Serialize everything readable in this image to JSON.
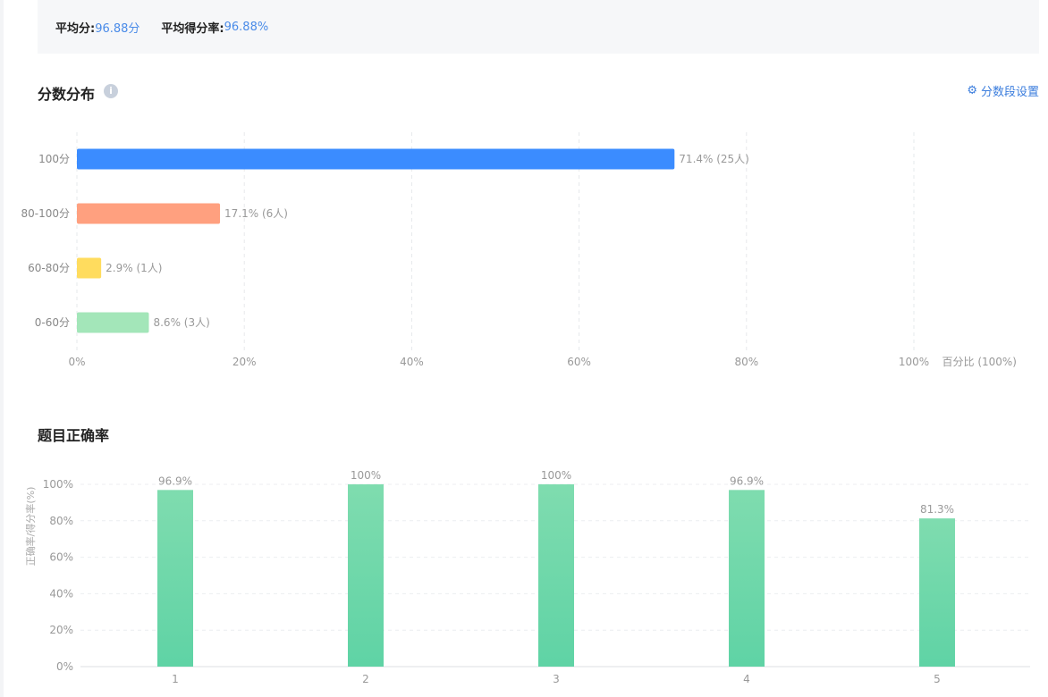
{
  "summary": {
    "avg_score_label": "平均分:",
    "avg_score_value": "96.88分",
    "avg_rate_label": "平均得分率:",
    "avg_rate_value": "96.88%"
  },
  "distribution": {
    "title": "分数分布",
    "info_icon": "info-icon",
    "settings_label": "分数段设置",
    "settings_icon": "gear-icon"
  },
  "correctness": {
    "title": "题目正确率"
  },
  "chart_data": [
    {
      "type": "bar",
      "orientation": "horizontal",
      "categories": [
        "100分",
        "80-100分",
        "60-80分",
        "0-60分"
      ],
      "values": [
        71.4,
        17.1,
        2.9,
        8.6
      ],
      "counts": [
        25,
        6,
        1,
        3
      ],
      "data_labels": [
        "71.4% (25人)",
        "17.1% (6人)",
        "2.9% (1人)",
        "8.6% (3人)"
      ],
      "colors": [
        "#3b8cff",
        "#ffa07f",
        "#ffdc5e",
        "#a3e6b9"
      ],
      "xlabel": "百分比 (100%)",
      "xlim": [
        0,
        100
      ],
      "xticks": [
        0,
        20,
        40,
        60,
        80,
        100
      ],
      "xtick_labels": [
        "0%",
        "20%",
        "40%",
        "60%",
        "80%",
        "100%"
      ],
      "grid": true
    },
    {
      "type": "bar",
      "orientation": "vertical",
      "categories": [
        "1",
        "2",
        "3",
        "4",
        "5"
      ],
      "values": [
        96.9,
        100,
        100,
        96.9,
        81.3
      ],
      "data_labels": [
        "96.9%",
        "100%",
        "100%",
        "96.9%",
        "81.3%"
      ],
      "color_top": "#7fdcaf",
      "color_bottom": "#5fd3a5",
      "ylabel": "正确率/得分率(%)",
      "ylim": [
        0,
        100
      ],
      "yticks": [
        0,
        20,
        40,
        60,
        80,
        100
      ],
      "ytick_labels": [
        "0%",
        "20%",
        "40%",
        "60%",
        "80%",
        "100%"
      ],
      "grid": true
    }
  ]
}
